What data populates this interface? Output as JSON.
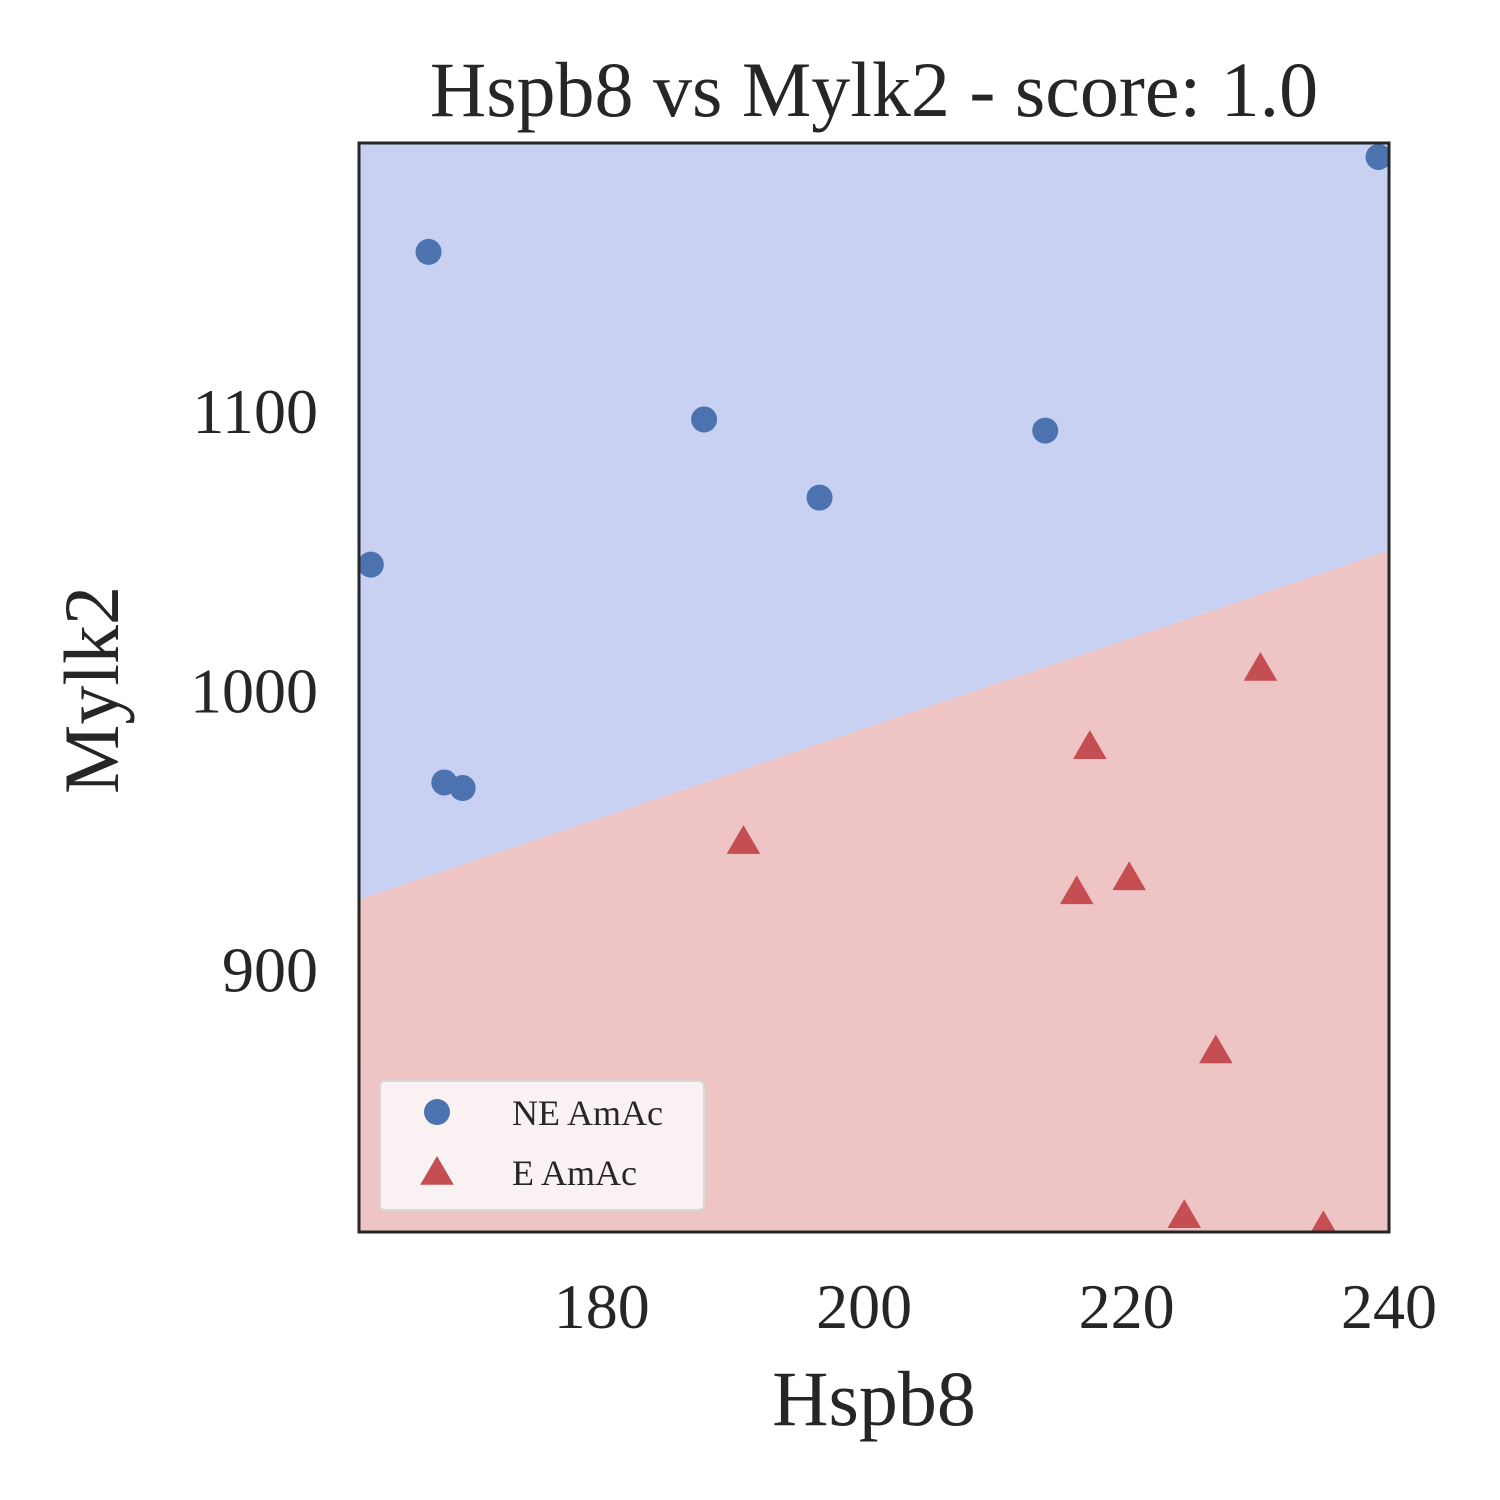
{
  "chart_data": {
    "type": "scatter",
    "title": "Hspb8 vs Mylk2 - score: 1.0",
    "xlabel": "Hspb8",
    "ylabel": "Mylk2",
    "xlim": [
      161.5,
      240
    ],
    "ylim": [
      806,
      1196
    ],
    "xticks": [
      180,
      200,
      220,
      240
    ],
    "yticks": [
      900,
      1000,
      1100
    ],
    "grid": false,
    "legend_position": "bottom-left",
    "decision_boundary": {
      "points": [
        [
          161.5,
          925
        ],
        [
          240,
          1050
        ]
      ],
      "above_color": "#c8d1f2",
      "below_color": "#eec4c4"
    },
    "series": [
      {
        "name": "NE AmAc",
        "marker": "circle",
        "color": "#4c72b0",
        "points": [
          [
            239.2,
            1191
          ],
          [
            166.8,
            1157
          ],
          [
            187.8,
            1097
          ],
          [
            213.8,
            1093
          ],
          [
            196.6,
            1069
          ],
          [
            162.4,
            1045
          ],
          [
            168.0,
            967
          ],
          [
            169.4,
            965
          ]
        ]
      },
      {
        "name": "E AmAc",
        "marker": "triangle",
        "color": "#c44e52",
        "points": [
          [
            230.2,
            1008
          ],
          [
            217.2,
            980
          ],
          [
            190.8,
            946
          ],
          [
            216.2,
            928
          ],
          [
            220.2,
            933
          ],
          [
            226.8,
            871
          ],
          [
            224.4,
            812
          ],
          [
            235.0,
            808
          ]
        ]
      }
    ]
  }
}
